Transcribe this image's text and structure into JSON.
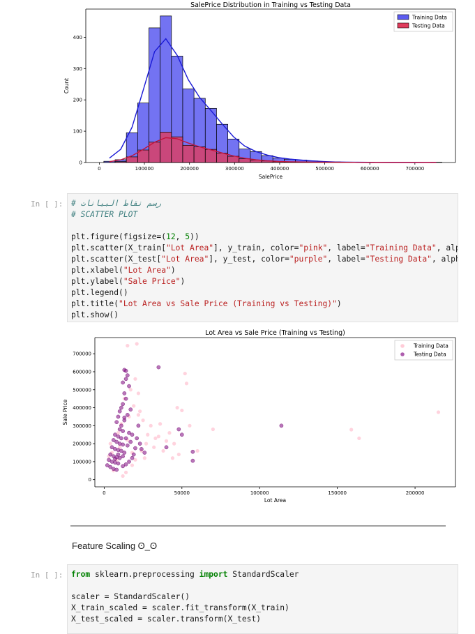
{
  "chart_data": [
    {
      "type": "bar",
      "title": "SalePrice Distribution in Training vs Testing Data",
      "xlabel": "SalePrice",
      "ylabel": "Count",
      "xlim": [
        -30000,
        790000
      ],
      "ylim": [
        0,
        490
      ],
      "xticks": [
        0,
        100000,
        200000,
        300000,
        400000,
        500000,
        600000,
        700000
      ],
      "xtick_labels": [
        "0",
        "100000",
        "200000",
        "300000",
        "400000",
        "500000",
        "600000",
        "700000"
      ],
      "yticks": [
        0,
        100,
        200,
        300,
        400
      ],
      "ytick_labels": [
        "0",
        "100",
        "200",
        "300",
        "400"
      ],
      "bin_width": 25000,
      "bin_starts": [
        10000,
        35000,
        60000,
        85000,
        110000,
        135000,
        160000,
        185000,
        210000,
        235000,
        260000,
        285000,
        310000,
        335000,
        360000,
        385000,
        410000,
        435000,
        460000,
        485000,
        510000,
        535000,
        560000,
        585000,
        610000,
        635000,
        660000,
        685000,
        710000,
        735000
      ],
      "legend_position": "upper right",
      "series": [
        {
          "name": "Training Data",
          "color": "#5b5bf0",
          "values": [
            4,
            9,
            95,
            190,
            430,
            468,
            340,
            235,
            205,
            173,
            122,
            75,
            43,
            35,
            22,
            14,
            10,
            8,
            5,
            2,
            2,
            1,
            1,
            1,
            0,
            0,
            0,
            0,
            0,
            1
          ]
        },
        {
          "name": "Testing Data",
          "color": "#e03c5c",
          "values": [
            0,
            3,
            18,
            40,
            65,
            97,
            82,
            55,
            50,
            42,
            30,
            20,
            12,
            8,
            5,
            3,
            2,
            2,
            1,
            1,
            1,
            1,
            0,
            0,
            0,
            0,
            0,
            0,
            0,
            0
          ]
        }
      ]
    },
    {
      "type": "scatter",
      "title": "Lot Area vs Sale Price (Training vs Testing)",
      "xlabel": "Lot Area",
      "ylabel": "Sale Price",
      "xlim": [
        -6000,
        226000
      ],
      "ylim": [
        -40000,
        790000
      ],
      "xticks": [
        0,
        50000,
        100000,
        150000,
        200000
      ],
      "xtick_labels": [
        "0",
        "50000",
        "100000",
        "150000",
        "200000"
      ],
      "yticks": [
        0,
        100000,
        200000,
        300000,
        400000,
        500000,
        600000,
        700000
      ],
      "ytick_labels": [
        "0",
        "100000",
        "200000",
        "300000",
        "400000",
        "500000",
        "600000",
        "700000"
      ],
      "legend_position": "upper right",
      "series": [
        {
          "name": "Training Data",
          "color": "pink",
          "points": [
            [
              21000,
              755000
            ],
            [
              15000,
              745000
            ],
            [
              52000,
              590000
            ],
            [
              53000,
              535000
            ],
            [
              47000,
              400000
            ],
            [
              50000,
              385000
            ],
            [
              70000,
              280000
            ],
            [
              159000,
              278000
            ],
            [
              164000,
              230000
            ],
            [
              215000,
              375000
            ],
            [
              22000,
              360000
            ],
            [
              25000,
              330000
            ],
            [
              30000,
              300000
            ],
            [
              28000,
              250000
            ],
            [
              35000,
              240000
            ],
            [
              40000,
              215000
            ],
            [
              45000,
              200000
            ],
            [
              32000,
              180000
            ],
            [
              38000,
              160000
            ],
            [
              42000,
              260000
            ],
            [
              26000,
              120000
            ],
            [
              20000,
              110000
            ],
            [
              18000,
              80000
            ],
            [
              14000,
              40000
            ],
            [
              12000,
              20000
            ],
            [
              6000,
              50000
            ],
            [
              5000,
              150000
            ],
            [
              4000,
              200000
            ],
            [
              3000,
              130000
            ],
            [
              9000,
              260000
            ],
            [
              11000,
              310000
            ],
            [
              16000,
              350000
            ],
            [
              19000,
              410000
            ],
            [
              13000,
              450000
            ],
            [
              17000,
              500000
            ],
            [
              20000,
              560000
            ],
            [
              22000,
              480000
            ],
            [
              23000,
              380000
            ],
            [
              27000,
              200000
            ],
            [
              24000,
              160000
            ],
            [
              33000,
              230000
            ],
            [
              48000,
              140000
            ],
            [
              55000,
              300000
            ],
            [
              60000,
              160000
            ],
            [
              36000,
              310000
            ],
            [
              44000,
              120000
            ],
            [
              8000,
              110000
            ],
            [
              10000,
              180000
            ],
            [
              15000,
              220000
            ],
            [
              18000,
              150000
            ]
          ]
        },
        {
          "name": "Testing Data",
          "color": "purple",
          "points": [
            [
              35000,
              625000
            ],
            [
              13000,
              610000
            ],
            [
              14000,
              605000
            ],
            [
              15000,
              580000
            ],
            [
              14000,
              560000
            ],
            [
              12000,
              540000
            ],
            [
              16000,
              520000
            ],
            [
              13000,
              480000
            ],
            [
              14000,
              450000
            ],
            [
              12000,
              420000
            ],
            [
              11000,
              400000
            ],
            [
              10000,
              380000
            ],
            [
              9000,
              350000
            ],
            [
              13000,
              345000
            ],
            [
              8000,
              320000
            ],
            [
              11000,
              300000
            ],
            [
              10000,
              280000
            ],
            [
              12000,
              270000
            ],
            [
              7000,
              250000
            ],
            [
              9000,
              240000
            ],
            [
              14000,
              230000
            ],
            [
              6000,
              220000
            ],
            [
              8000,
              210000
            ],
            [
              10000,
              200000
            ],
            [
              12000,
              195000
            ],
            [
              5000,
              180000
            ],
            [
              7000,
              170000
            ],
            [
              9000,
              165000
            ],
            [
              11000,
              160000
            ],
            [
              13000,
              150000
            ],
            [
              4000,
              140000
            ],
            [
              6000,
              130000
            ],
            [
              8000,
              125000
            ],
            [
              10000,
              120000
            ],
            [
              3000,
              110000
            ],
            [
              5000,
              100000
            ],
            [
              7000,
              95000
            ],
            [
              9000,
              90000
            ],
            [
              2000,
              80000
            ],
            [
              4000,
              70000
            ],
            [
              6000,
              60000
            ],
            [
              8000,
              55000
            ],
            [
              12000,
              75000
            ],
            [
              14000,
              85000
            ],
            [
              16000,
              100000
            ],
            [
              18000,
              120000
            ],
            [
              19000,
              140000
            ],
            [
              20000,
              175000
            ],
            [
              15000,
              190000
            ],
            [
              17000,
              210000
            ],
            [
              21000,
              230000
            ],
            [
              18000,
              250000
            ],
            [
              16000,
              260000
            ],
            [
              22000,
              300000
            ],
            [
              114000,
              300000
            ],
            [
              48000,
              280000
            ],
            [
              50000,
              250000
            ],
            [
              57000,
              155000
            ],
            [
              57000,
              105000
            ],
            [
              40000,
              180000
            ],
            [
              24000,
              170000
            ],
            [
              26000,
              150000
            ],
            [
              23000,
              200000
            ],
            [
              13000,
              330000
            ],
            [
              15000,
              360000
            ],
            [
              17000,
              390000
            ],
            [
              11000,
              230000
            ],
            [
              9000,
              140000
            ],
            [
              7000,
              115000
            ],
            [
              12000,
              130000
            ]
          ]
        }
      ]
    }
  ],
  "cells": [
    {
      "prompt": "In [ ]:",
      "lines": [
        [
          {
            "t": "# رسم نقاط البيانات",
            "c": "cm"
          }
        ],
        [
          {
            "t": "# SCATTER PLOT",
            "c": "cm"
          }
        ],
        [
          {
            "t": "",
            "c": "blk"
          }
        ],
        [
          {
            "t": "plt.figure(figsize=(",
            "c": "blk"
          },
          {
            "t": "12",
            "c": "num"
          },
          {
            "t": ", ",
            "c": "blk"
          },
          {
            "t": "5",
            "c": "num"
          },
          {
            "t": "))",
            "c": "blk"
          }
        ],
        [
          {
            "t": "plt.scatter(X_train[",
            "c": "blk"
          },
          {
            "t": "\"Lot Area\"",
            "c": "str"
          },
          {
            "t": "], y_train, color=",
            "c": "blk"
          },
          {
            "t": "\"pink\"",
            "c": "str"
          },
          {
            "t": ", label=",
            "c": "blk"
          },
          {
            "t": "\"Training Data\"",
            "c": "str"
          },
          {
            "t": ", alph",
            "c": "blk"
          }
        ],
        [
          {
            "t": "plt.scatter(X_test[",
            "c": "blk"
          },
          {
            "t": "\"Lot Area\"",
            "c": "str"
          },
          {
            "t": "], y_test, color=",
            "c": "blk"
          },
          {
            "t": "\"purple\"",
            "c": "str"
          },
          {
            "t": ", label=",
            "c": "blk"
          },
          {
            "t": "\"Testing Data\"",
            "c": "str"
          },
          {
            "t": ", alpha",
            "c": "blk"
          }
        ],
        [
          {
            "t": "plt.xlabel(",
            "c": "blk"
          },
          {
            "t": "\"Lot Area\"",
            "c": "str"
          },
          {
            "t": ")",
            "c": "blk"
          }
        ],
        [
          {
            "t": "plt.ylabel(",
            "c": "blk"
          },
          {
            "t": "\"Sale Price\"",
            "c": "str"
          },
          {
            "t": ")",
            "c": "blk"
          }
        ],
        [
          {
            "t": "plt.legend()",
            "c": "blk"
          }
        ],
        [
          {
            "t": "plt.title(",
            "c": "blk"
          },
          {
            "t": "\"Lot Area vs Sale Price (Training vs Testing)\"",
            "c": "str"
          },
          {
            "t": ")",
            "c": "blk"
          }
        ],
        [
          {
            "t": "plt.show()",
            "c": "blk"
          }
        ]
      ]
    },
    {
      "prompt": "In [ ]:",
      "lines": [
        [
          {
            "t": "from",
            "c": "kw"
          },
          {
            "t": " sklearn.preprocessing ",
            "c": "blk"
          },
          {
            "t": "import",
            "c": "kw"
          },
          {
            "t": " StandardScaler",
            "c": "blk"
          }
        ],
        [
          {
            "t": "",
            "c": "blk"
          }
        ],
        [
          {
            "t": "scaler = StandardScaler()",
            "c": "blk"
          }
        ],
        [
          {
            "t": "X_train_scaled = scaler.fit_transform(X_train)",
            "c": "blk"
          }
        ],
        [
          {
            "t": "X_test_scaled = scaler.transform(X_test)",
            "c": "blk"
          }
        ]
      ]
    }
  ],
  "markdown": {
    "heading": "Feature Scaling ʘ_ʘ"
  }
}
